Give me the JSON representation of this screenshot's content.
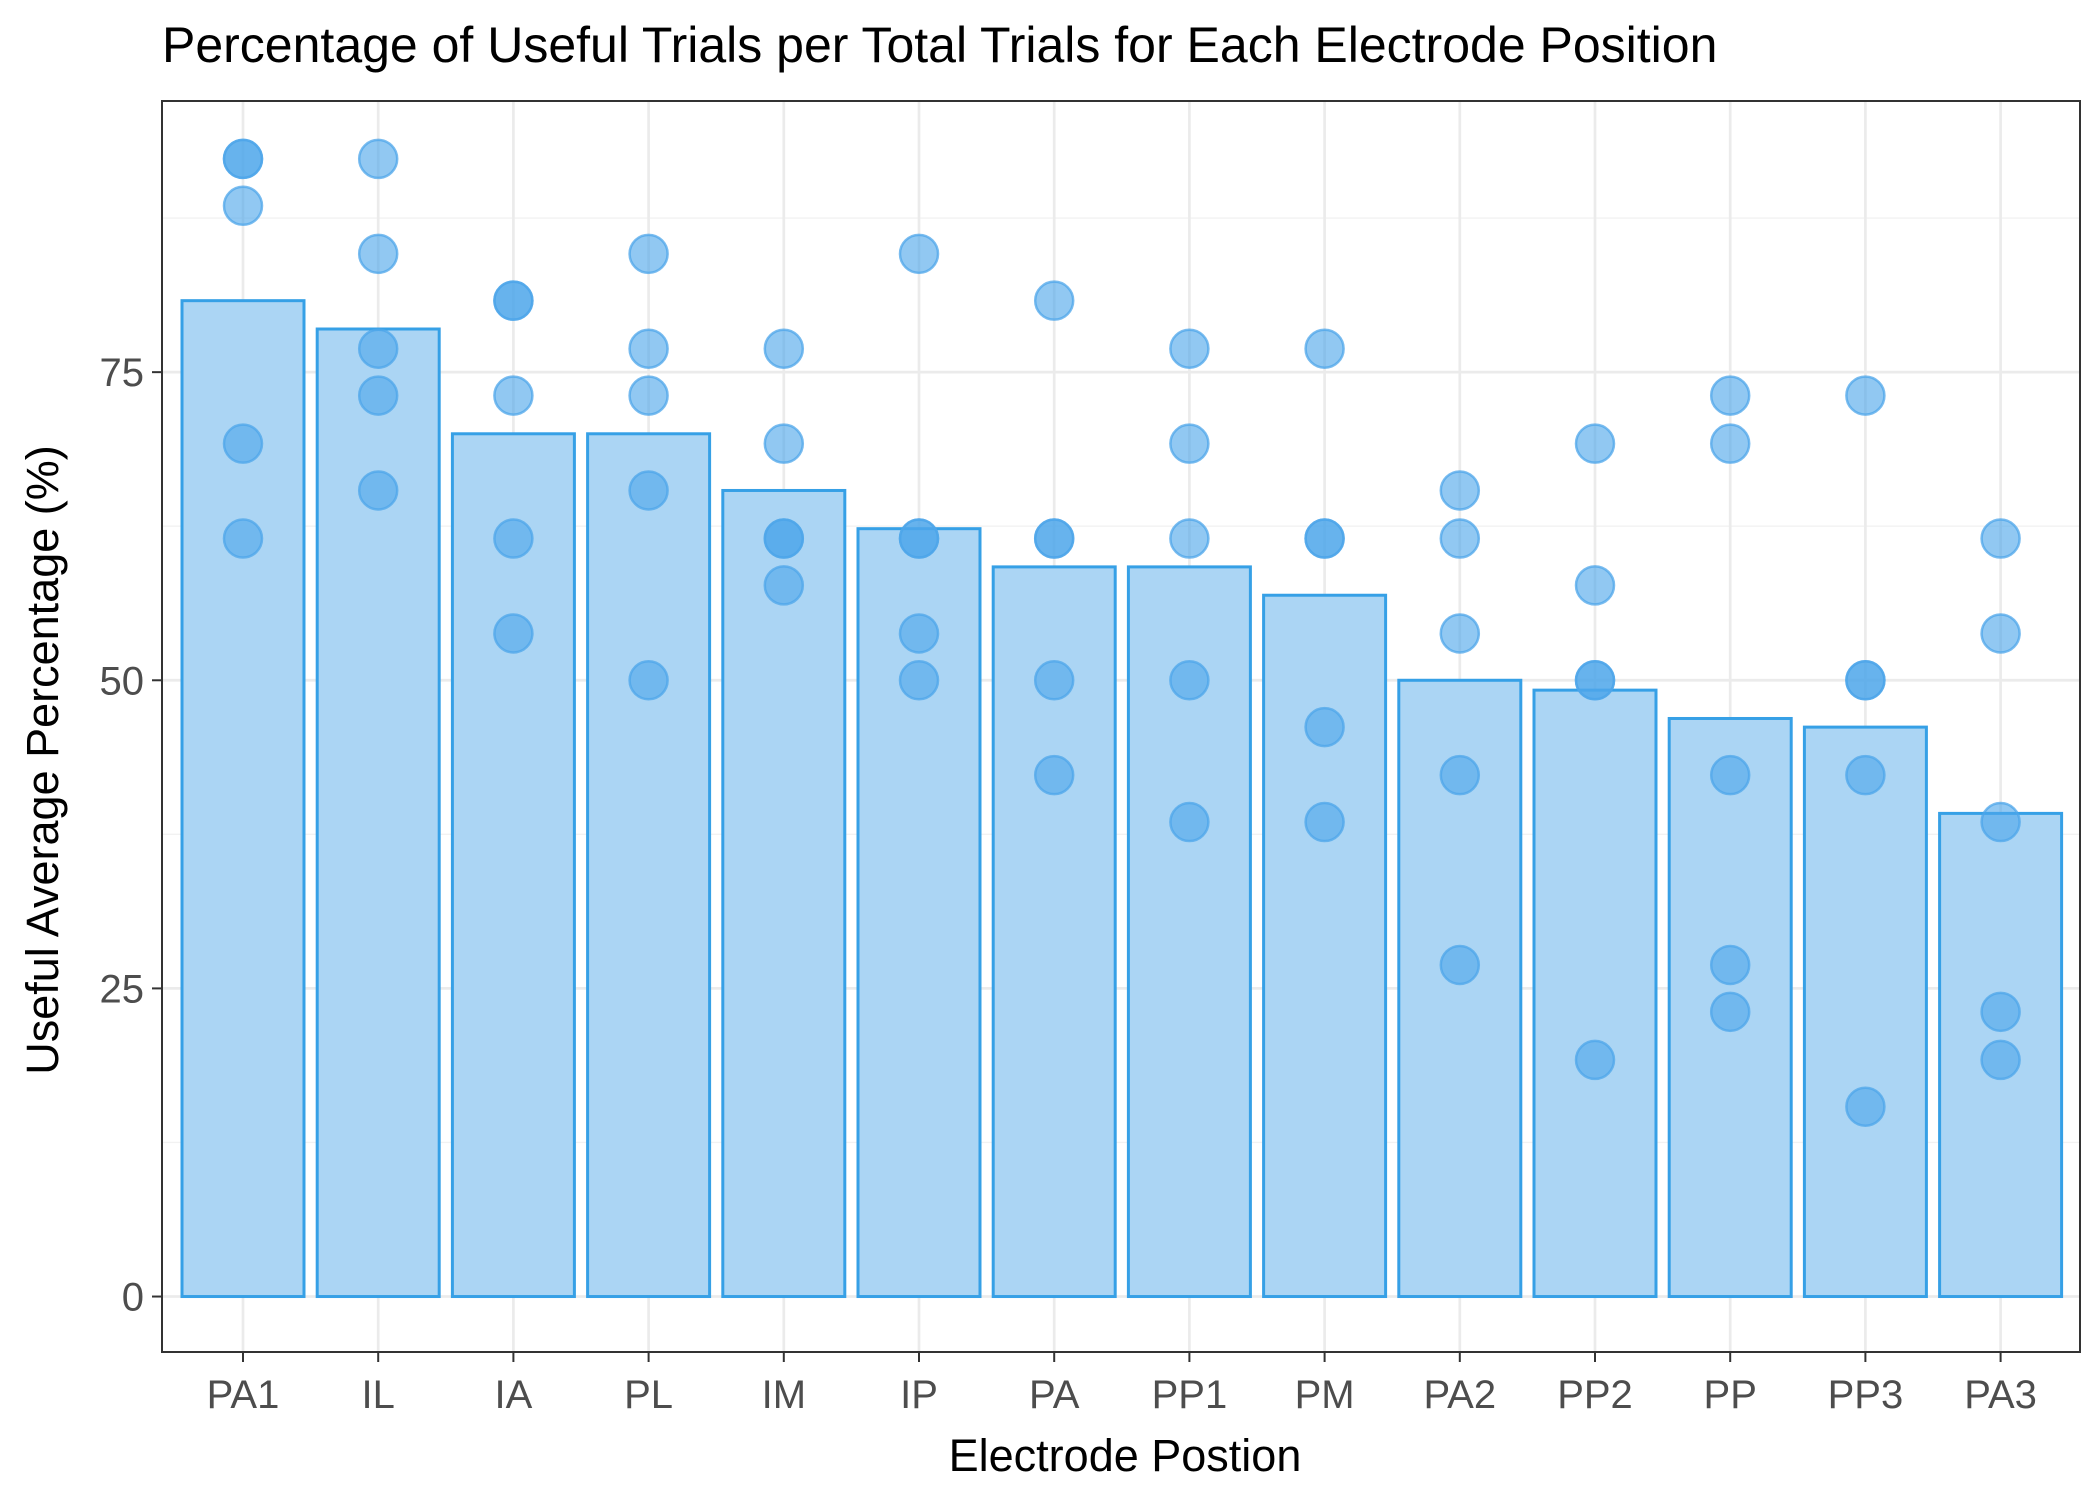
{
  "chart_data": {
    "type": "bar",
    "title": "Percentage of Useful Trials per Total Trials for Each Electrode Position",
    "xlabel": "Electrode Postion",
    "ylabel": "Useful Average Percentage (%)",
    "ylim": [
      -4.5,
      97
    ],
    "yticks": [
      0,
      25,
      50,
      75
    ],
    "grid": true,
    "legend": "none",
    "colors": {
      "bar_fill": "#abd5f4",
      "bar_stroke": "#36a0e6",
      "point_fill": "#4da6ea",
      "point_stroke": "#4da6ea"
    },
    "categories": [
      "PA1",
      "IL",
      "IA",
      "PL",
      "IM",
      "IP",
      "PA",
      "PP1",
      "PM",
      "PA2",
      "PP2",
      "PP",
      "PP3",
      "PA3"
    ],
    "values": [
      80.8,
      78.5,
      70.0,
      70.0,
      65.4,
      62.3,
      59.2,
      59.2,
      56.9,
      50.0,
      49.2,
      46.9,
      46.2,
      39.2
    ],
    "points": [
      [
        92.3,
        92.3,
        88.5,
        69.2,
        61.5
      ],
      [
        92.3,
        84.6,
        76.9,
        73.1,
        65.4
      ],
      [
        80.8,
        80.8,
        73.1,
        61.5,
        53.8
      ],
      [
        84.6,
        76.9,
        73.1,
        65.4,
        50.0
      ],
      [
        76.9,
        69.2,
        61.5,
        61.5,
        57.7
      ],
      [
        84.6,
        61.5,
        61.5,
        53.8,
        50.0
      ],
      [
        80.8,
        61.5,
        61.5,
        50.0,
        42.3
      ],
      [
        76.9,
        69.2,
        61.5,
        50.0,
        38.5
      ],
      [
        76.9,
        61.5,
        61.5,
        46.2,
        38.5
      ],
      [
        65.4,
        61.5,
        53.8,
        42.3,
        26.9
      ],
      [
        69.2,
        57.7,
        50.0,
        50.0,
        19.2
      ],
      [
        73.1,
        69.2,
        42.3,
        26.9,
        23.1
      ],
      [
        73.1,
        50.0,
        50.0,
        42.3,
        15.4
      ],
      [
        61.5,
        53.8,
        38.5,
        23.1,
        19.2
      ]
    ]
  }
}
